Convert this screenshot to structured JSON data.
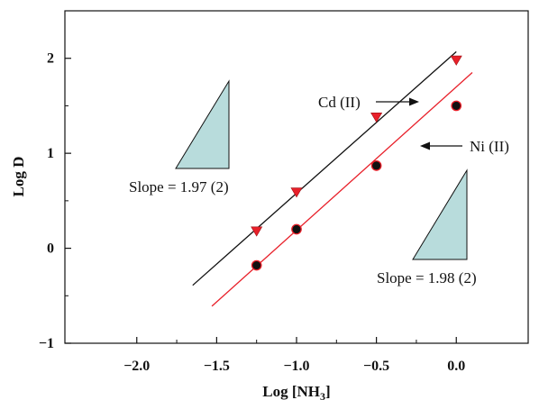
{
  "chart_data": {
    "type": "scatter",
    "xlabel": "Log [NH",
    "xlabel_sub": "3",
    "xlabel_close": "]",
    "ylabel": "Log D",
    "xlim": [
      -2.45,
      0.45
    ],
    "ylim": [
      -1.0,
      2.5
    ],
    "x_ticks": [
      -2.0,
      -1.5,
      -1.0,
      -0.5,
      0.0
    ],
    "x_tick_labels": [
      "−2.0",
      "−1.5",
      "−1.0",
      "−0.5",
      "0.0"
    ],
    "y_ticks": [
      -1,
      0,
      1,
      2
    ],
    "y_tick_labels": [
      "−1",
      "0",
      "1",
      "2"
    ],
    "grid": false,
    "series": [
      {
        "name": "Cd (II)",
        "marker": "triangle-down",
        "color": "#e8202a",
        "line_color": "#111111",
        "x": [
          -1.25,
          -1.0,
          -0.5,
          0.0
        ],
        "y": [
          0.18,
          0.59,
          1.38,
          1.98
        ],
        "fit": {
          "x": [
            -1.65,
            0.0
          ],
          "y": [
            -0.39,
            2.07
          ]
        }
      },
      {
        "name": "Ni (II)",
        "marker": "circle",
        "color": "#111111",
        "line_color": "#e8202a",
        "x": [
          -1.25,
          -1.0,
          -0.5,
          0.0
        ],
        "y": [
          -0.18,
          0.2,
          0.87,
          1.5
        ],
        "fit": {
          "x": [
            -1.53,
            0.1
          ],
          "y": [
            -0.61,
            1.85
          ]
        }
      }
    ],
    "annotations": {
      "cd_label": "Cd (II)",
      "ni_label": "Ni (II)",
      "slope_left": "Slope = 1.97 (2)",
      "slope_right": "Slope = 1.98 (2)"
    },
    "triangle_fill": "#b8dcdc"
  }
}
